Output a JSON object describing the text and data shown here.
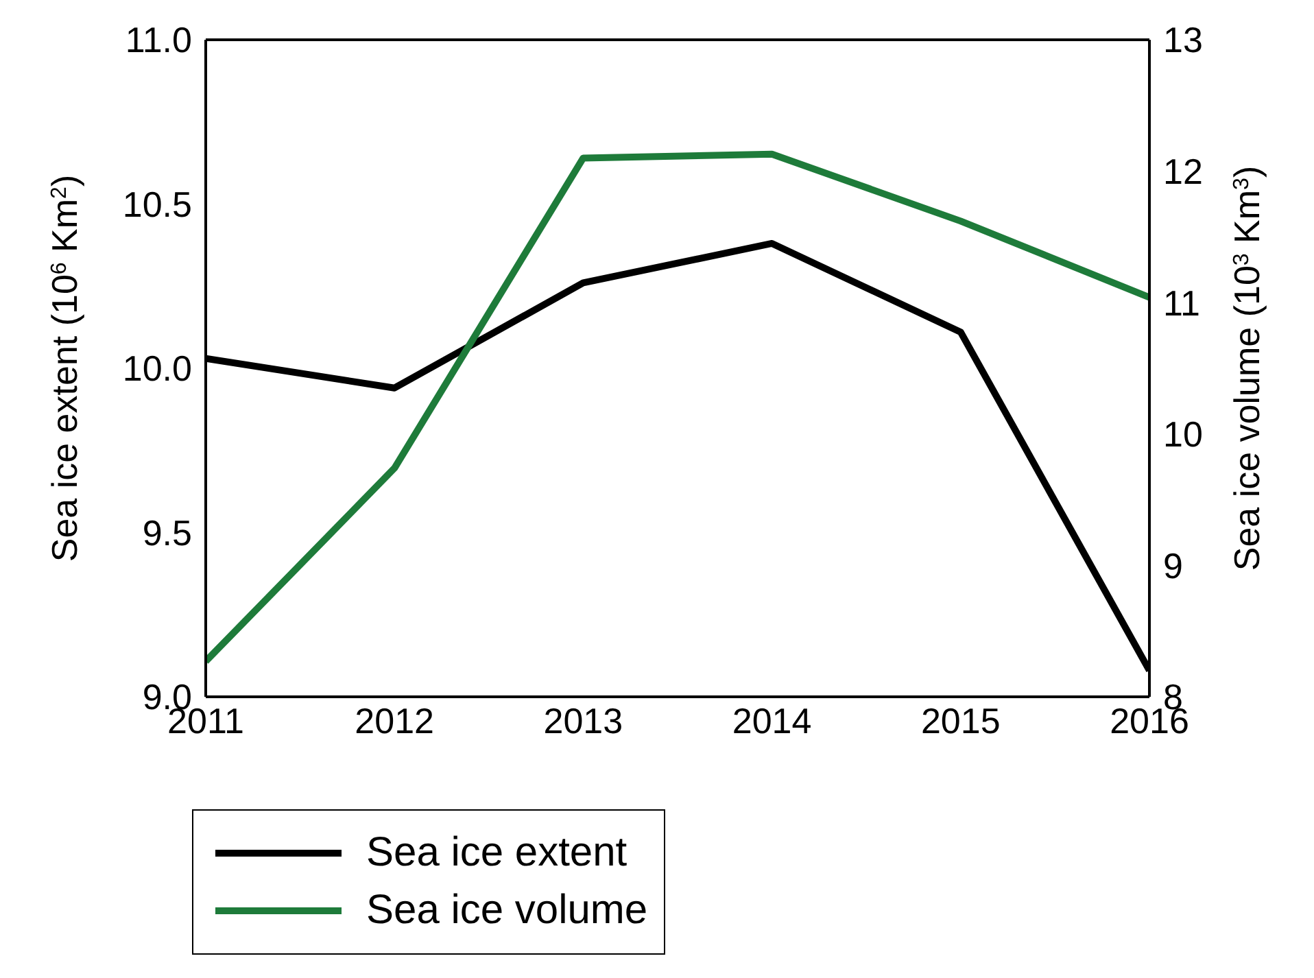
{
  "chart_data": {
    "type": "line",
    "x": [
      2011,
      2012,
      2013,
      2014,
      2015,
      2016
    ],
    "xlim": [
      2011,
      2016
    ],
    "xticks": [
      2011,
      2012,
      2013,
      2014,
      2015,
      2016
    ],
    "ylabel": "Sea ice extent (10$^{6}$ Km$^{2}$)",
    "y2label": "Sea ice volume (10$^{3}$ Km$^{3}$)",
    "ylim": [
      9.0,
      11.0
    ],
    "yticks": [
      {
        "value": 9,
        "label": "9.0"
      },
      9.5,
      {
        "value": 10,
        "label": "10.0"
      },
      10.5,
      {
        "value": 11,
        "label": "11.0"
      }
    ],
    "y2lim": [
      8,
      13
    ],
    "y2ticks": [
      8,
      9,
      10,
      11,
      12,
      13
    ],
    "series": [
      {
        "name": "Sea ice extent",
        "color": "#000000",
        "values": [
          10.03,
          9.94,
          10.26,
          10.38,
          10.11,
          9.08
        ]
      },
      {
        "name": "Sea ice volume",
        "color": "#1e7b3a",
        "axis": "y2",
        "values": [
          8.27,
          9.74,
          12.1,
          12.13,
          11.62,
          11.04
        ]
      }
    ],
    "grid": false,
    "legend": "bottom left",
    "marker": "none",
    "line_style": "solid"
  }
}
